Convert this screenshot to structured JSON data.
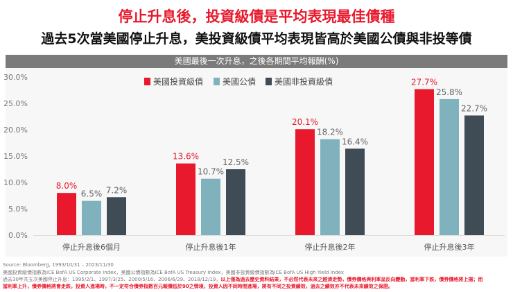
{
  "title": "停止升息後，投資級債是平均表現最佳債種",
  "subtitle": "過去5次當美國停止升息，美投資級債平均表現皆高於美國公債與非投等債",
  "chart_data": {
    "type": "bar",
    "title": "美國最後一次升息，之後各期間平均報酬(%)",
    "categories": [
      "停止升息後6個月",
      "停止升息後1年",
      "停止升息後2年",
      "停止升息後3年"
    ],
    "series": [
      {
        "name": "美國投資級債",
        "color": "#e8192c",
        "values": [
          8.0,
          13.6,
          20.1,
          27.7
        ]
      },
      {
        "name": "美國公債",
        "color": "#7fb2bd",
        "values": [
          6.5,
          10.7,
          18.2,
          25.8
        ]
      },
      {
        "name": "美國非投資級債",
        "color": "#3f4b55",
        "values": [
          7.2,
          12.5,
          16.4,
          22.7
        ]
      }
    ],
    "yticks": [
      "0.0%",
      "5.0%",
      "10.0%",
      "15.0%",
      "20.0%",
      "25.0%",
      "30.0%"
    ],
    "ylim": [
      0,
      30
    ],
    "legend": "top-left",
    "grid": false
  },
  "footnotes": {
    "source": "Source: Bloomberg, 1993/10/31 – 2023/11/30",
    "indices": "美國投資級債指數為ICE BofA US Corporate Index，美國公債指數為ICE BofA US Treasury Index，美國非投資級債指數為ICE BofA US High Yield Index",
    "dates": "過去30年共五次美國停止升息：1995/2/1、1997/3/25、2000/5/16、2006/6/29、2018/12/19，",
    "disclaimer1": "以上僅為過去歷史資料結果，不必然代表未來之經濟走勢，債券價格與利率呈反向變動，當利率下跌，債券價格將上揚；而",
    "disclaimer2": "當利率上升，債券價格將會走跌，投資人進場時，不一定符合債券指數百元報價低於90之情境，投資人因不同時間進場，將有不同之投資績效，過去之績效亦不代表未來績效之保證。"
  }
}
